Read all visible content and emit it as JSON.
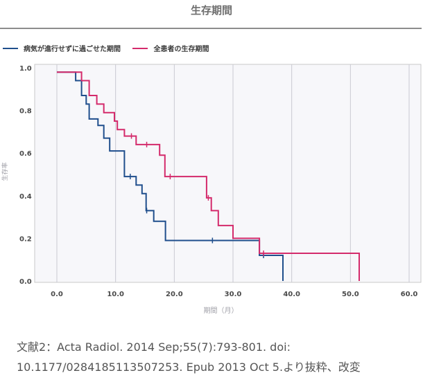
{
  "chart_data": {
    "type": "line",
    "title": "生存期間",
    "xlabel": "期間（月）",
    "ylabel": "生存率",
    "xlim": [
      0,
      60
    ],
    "ylim": [
      0,
      1.0
    ],
    "x_ticks": [
      "0.0",
      "10.0",
      "20.0",
      "30.0",
      "40.0",
      "50.0",
      "60.0"
    ],
    "y_ticks": [
      "0.0",
      "0.2",
      "0.4",
      "0.6",
      "0.8",
      "1.0"
    ],
    "grid": true,
    "legend_position": "top-left",
    "series": [
      {
        "name": "病気が進行せずに過ごせた期間",
        "color": "#1f4e8c",
        "step_points": [
          [
            0,
            0.98
          ],
          [
            3.2,
            0.98
          ],
          [
            3.2,
            0.94
          ],
          [
            4.2,
            0.94
          ],
          [
            4.2,
            0.87
          ],
          [
            5.0,
            0.87
          ],
          [
            5.0,
            0.83
          ],
          [
            5.5,
            0.83
          ],
          [
            5.5,
            0.76
          ],
          [
            7.0,
            0.76
          ],
          [
            7.0,
            0.73
          ],
          [
            8.0,
            0.73
          ],
          [
            8.0,
            0.67
          ],
          [
            9.0,
            0.67
          ],
          [
            9.0,
            0.61
          ],
          [
            11.5,
            0.61
          ],
          [
            11.5,
            0.49
          ],
          [
            13.5,
            0.49
          ],
          [
            13.5,
            0.45
          ],
          [
            14.5,
            0.45
          ],
          [
            14.5,
            0.41
          ],
          [
            15.2,
            0.41
          ],
          [
            15.2,
            0.33
          ],
          [
            16.5,
            0.33
          ],
          [
            16.5,
            0.28
          ],
          [
            18.5,
            0.28
          ],
          [
            18.5,
            0.19
          ],
          [
            34.5,
            0.19
          ],
          [
            34.5,
            0.12
          ],
          [
            38.5,
            0.12
          ],
          [
            38.5,
            0.0
          ]
        ],
        "censored": [
          [
            12.5,
            0.49
          ],
          [
            15.3,
            0.33
          ],
          [
            26.5,
            0.19
          ],
          [
            35.2,
            0.12
          ]
        ]
      },
      {
        "name": "全患者の生存期間",
        "color": "#d42a6b",
        "step_points": [
          [
            0,
            0.98
          ],
          [
            4.2,
            0.98
          ],
          [
            4.2,
            0.94
          ],
          [
            5.5,
            0.94
          ],
          [
            5.5,
            0.87
          ],
          [
            6.8,
            0.87
          ],
          [
            6.8,
            0.83
          ],
          [
            8.0,
            0.83
          ],
          [
            8.0,
            0.79
          ],
          [
            9.8,
            0.79
          ],
          [
            9.8,
            0.75
          ],
          [
            10.3,
            0.75
          ],
          [
            10.3,
            0.71
          ],
          [
            11.5,
            0.71
          ],
          [
            11.5,
            0.68
          ],
          [
            13.5,
            0.68
          ],
          [
            13.5,
            0.64
          ],
          [
            17.5,
            0.64
          ],
          [
            17.5,
            0.59
          ],
          [
            18.4,
            0.59
          ],
          [
            18.4,
            0.49
          ],
          [
            25.5,
            0.49
          ],
          [
            25.5,
            0.39
          ],
          [
            26.3,
            0.39
          ],
          [
            26.3,
            0.33
          ],
          [
            27.5,
            0.33
          ],
          [
            27.5,
            0.26
          ],
          [
            30.0,
            0.26
          ],
          [
            30.0,
            0.2
          ],
          [
            34.5,
            0.2
          ],
          [
            34.5,
            0.13
          ],
          [
            51.5,
            0.13
          ],
          [
            51.5,
            0.0
          ]
        ],
        "censored": [
          [
            12.7,
            0.68
          ],
          [
            15.3,
            0.64
          ],
          [
            19.3,
            0.49
          ],
          [
            25.8,
            0.39
          ],
          [
            35.2,
            0.13
          ]
        ]
      }
    ]
  },
  "caption": {
    "line1": "文献2：Acta Radiol. 2014 Sep;55(7):793-801. doi:",
    "line2": "10.1177/0284185113507253. Epub 2013 Oct 5.より抜粋、改変"
  }
}
